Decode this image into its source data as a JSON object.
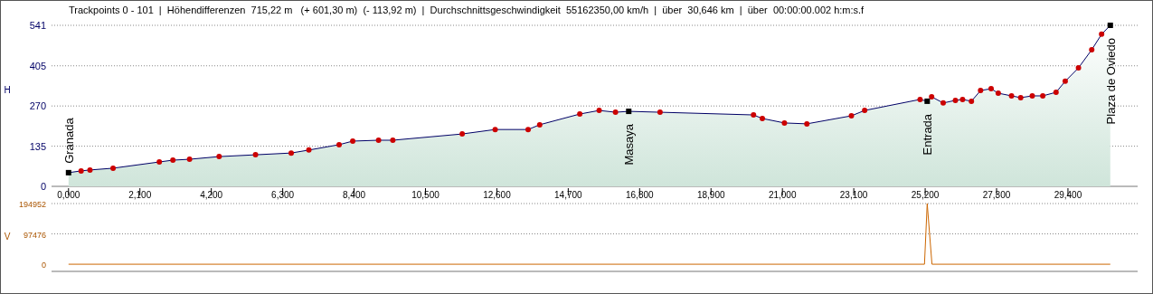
{
  "chart_data": [
    {
      "type": "area",
      "title": "Trackpoints 0 - 101  |  Höhendifferenzen  715,22 m   (+ 601,30 m)  (- 113,92 m)  |  Durchschnittsgeschwindigkeit  55162350,00 km/h  |  über  30,646 km  |  über  00:00:00.002 h:m:s.f",
      "ylabel": "H",
      "xlim": [
        -0.5,
        31.45
      ],
      "xticks": [
        {
          "value": 0,
          "label": "0,000"
        },
        {
          "value": 2.1,
          "label": "2,100"
        },
        {
          "value": 4.2,
          "label": "4,200"
        },
        {
          "value": 6.3,
          "label": "6,300"
        },
        {
          "value": 8.4,
          "label": "8,400"
        },
        {
          "value": 10.5,
          "label": "10,500"
        },
        {
          "value": 12.6,
          "label": "12,600"
        },
        {
          "value": 14.7,
          "label": "14,700"
        },
        {
          "value": 16.8,
          "label": "16,800"
        },
        {
          "value": 18.9,
          "label": "18,900"
        },
        {
          "value": 21,
          "label": "21,000"
        },
        {
          "value": 23.1,
          "label": "23,100"
        },
        {
          "value": 25.2,
          "label": "25,200"
        },
        {
          "value": 27.3,
          "label": "27,300"
        },
        {
          "value": 29.4,
          "label": "29,400"
        }
      ],
      "ylim": [
        0,
        541
      ],
      "yticks": [
        0,
        135,
        270,
        405,
        541
      ],
      "grid": "y",
      "series": [
        {
          "type": "area",
          "color": "#000066",
          "x": [
            0,
            0.37,
            0.63,
            1.31,
            2.67,
            3.07,
            3.56,
            4.43,
            5.5,
            6.55,
            7.07,
            7.96,
            8.36,
            9.12,
            9.54,
            11.58,
            12.55,
            13.52,
            13.86,
            15.04,
            15.61,
            16.09,
            16.48,
            17.4,
            20.15,
            20.41,
            21.06,
            21.72,
            23.03,
            23.42,
            25.05,
            25.26,
            25.39,
            25.73,
            26.09,
            26.3,
            26.56,
            26.83,
            27.14,
            27.35,
            27.74,
            28.01,
            28.35,
            28.66,
            29.05,
            29.32,
            29.71,
            30.1,
            30.39,
            30.646
          ],
          "values": [
            46,
            52,
            55,
            61,
            82,
            88,
            91,
            100,
            106,
            112,
            122,
            140,
            152,
            155,
            155,
            176,
            191,
            191,
            207,
            243,
            255,
            249,
            252,
            249,
            240,
            228,
            213,
            210,
            237,
            255,
            292,
            286,
            301,
            280,
            289,
            292,
            286,
            322,
            328,
            313,
            304,
            298,
            304,
            304,
            316,
            353,
            398,
            459,
            511,
            541
          ]
        },
        {
          "type": "scatter",
          "marker": "circle",
          "color": "#cc0000",
          "x": [
            0.37,
            0.63,
            1.31,
            2.67,
            3.07,
            3.56,
            4.43,
            5.5,
            6.55,
            7.07,
            7.96,
            8.36,
            9.12,
            9.54,
            11.58,
            12.55,
            13.52,
            13.86,
            15.04,
            15.61,
            16.09,
            17.4,
            20.15,
            20.41,
            21.06,
            21.72,
            23.03,
            23.42,
            25.05,
            25.39,
            25.73,
            26.09,
            26.3,
            26.56,
            26.83,
            27.14,
            27.35,
            27.74,
            28.01,
            28.35,
            28.66,
            29.05,
            29.32,
            29.71,
            30.1,
            30.39
          ],
          "values": [
            52,
            55,
            61,
            82,
            88,
            91,
            100,
            106,
            112,
            122,
            140,
            152,
            155,
            155,
            176,
            191,
            191,
            207,
            243,
            255,
            249,
            249,
            240,
            228,
            213,
            210,
            237,
            255,
            292,
            301,
            280,
            289,
            292,
            286,
            322,
            328,
            313,
            304,
            298,
            304,
            304,
            316,
            353,
            398,
            459,
            511
          ]
        },
        {
          "type": "scatter",
          "marker": "square",
          "color": "#000000",
          "x": [
            0,
            16.48,
            25.26,
            30.646
          ],
          "values": [
            46,
            252,
            286,
            541
          ]
        }
      ],
      "annotations": [
        {
          "text": "Granada",
          "x": 0,
          "y": 46
        },
        {
          "text": "Masaya",
          "x": 16.48,
          "y": 252
        },
        {
          "text": "Entrada",
          "x": 25.26,
          "y": 286
        },
        {
          "text": "Plaza de Oviedo",
          "x": 30.646,
          "y": 541
        }
      ]
    },
    {
      "type": "line",
      "ylabel": "V",
      "xlim": [
        -0.5,
        31.45
      ],
      "ylim": [
        -23000,
        194952
      ],
      "yticks": [
        0,
        97476,
        194952
      ],
      "grid": "y",
      "tick_labels": "y",
      "series": [
        {
          "color": "#cc6600",
          "x": [
            0,
            25.18,
            25.26,
            25.4,
            30.646
          ],
          "values": [
            0,
            0,
            194952,
            0,
            0
          ]
        }
      ]
    }
  ]
}
